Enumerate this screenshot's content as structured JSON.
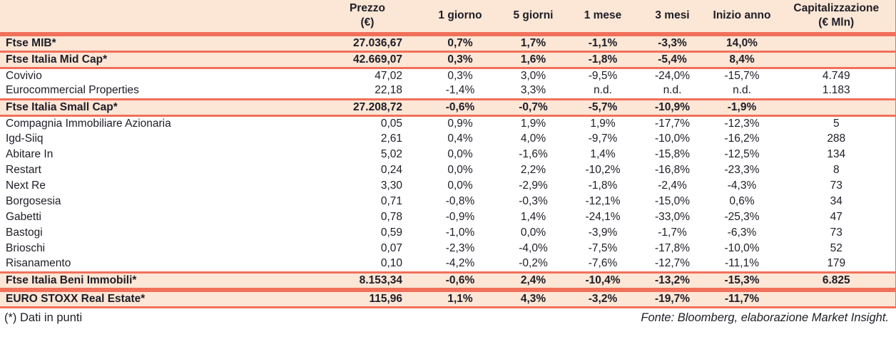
{
  "colors": {
    "highlight_background": "#fce6d5",
    "rule_coral": "#f1705a",
    "text": "#1d1d27"
  },
  "table": {
    "columns": [
      {
        "key": "name",
        "label": ""
      },
      {
        "key": "prezzo",
        "label": "Prezzo\n(€)"
      },
      {
        "key": "d1",
        "label": "1 giorno"
      },
      {
        "key": "d5",
        "label": "5 giorni"
      },
      {
        "key": "m1",
        "label": "1 mese"
      },
      {
        "key": "m3",
        "label": "3 mesi"
      },
      {
        "key": "ytd",
        "label": "Inizio anno"
      },
      {
        "key": "cap",
        "label": "Capitalizzazione\n(€ Mln)"
      }
    ],
    "rows": [
      {
        "kind": "index",
        "name": "Ftse MIB*",
        "prezzo": "27.036,67",
        "d1": "0,7%",
        "d5": "1,7%",
        "m1": "-1,1%",
        "m3": "-3,3%",
        "ytd": "14,0%",
        "cap": ""
      },
      {
        "kind": "index",
        "name": "Ftse Italia Mid Cap*",
        "prezzo": "42.669,07",
        "d1": "0,3%",
        "d5": "1,6%",
        "m1": "-1,8%",
        "m3": "-5,4%",
        "ytd": "8,4%",
        "cap": ""
      },
      {
        "kind": "stock",
        "name": "Covivio",
        "prezzo": "47,02",
        "d1": "0,3%",
        "d5": "3,0%",
        "m1": "-9,5%",
        "m3": "-24,0%",
        "ytd": "-15,7%",
        "cap": "4.749"
      },
      {
        "kind": "stock",
        "name": "Eurocommercial Properties",
        "prezzo": "22,18",
        "d1": "-1,4%",
        "d5": "3,3%",
        "m1": "n.d.",
        "m3": "n.d.",
        "ytd": "n.d.",
        "cap": "1.183"
      },
      {
        "kind": "index",
        "name": "Ftse Italia Small Cap*",
        "prezzo": "27.208,72",
        "d1": "-0,6%",
        "d5": "-0,7%",
        "m1": "-5,7%",
        "m3": "-10,9%",
        "ytd": "-1,9%",
        "cap": ""
      },
      {
        "kind": "stock",
        "name": "Compagnia Immobiliare Azionaria",
        "prezzo": "0,05",
        "d1": "0,9%",
        "d5": "1,9%",
        "m1": "1,9%",
        "m3": "-17,7%",
        "ytd": "-12,3%",
        "cap": "5"
      },
      {
        "kind": "stock",
        "name": "Igd-Siiq",
        "prezzo": "2,61",
        "d1": "0,4%",
        "d5": "4,0%",
        "m1": "-9,7%",
        "m3": "-10,0%",
        "ytd": "-16,2%",
        "cap": "288"
      },
      {
        "kind": "stock",
        "name": "Abitare In",
        "prezzo": "5,02",
        "d1": "0,0%",
        "d5": "-1,6%",
        "m1": "1,4%",
        "m3": "-15,8%",
        "ytd": "-12,5%",
        "cap": "134"
      },
      {
        "kind": "stock",
        "name": "Restart",
        "prezzo": "0,24",
        "d1": "0,0%",
        "d5": "2,2%",
        "m1": "-10,2%",
        "m3": "-16,8%",
        "ytd": "-23,3%",
        "cap": "8"
      },
      {
        "kind": "stock",
        "name": "Next Re",
        "prezzo": "3,30",
        "d1": "0,0%",
        "d5": "-2,9%",
        "m1": "-1,8%",
        "m3": "-2,4%",
        "ytd": "-4,3%",
        "cap": "73"
      },
      {
        "kind": "stock",
        "name": "Borgosesia",
        "prezzo": "0,71",
        "d1": "-0,8%",
        "d5": "-0,3%",
        "m1": "-12,1%",
        "m3": "-15,0%",
        "ytd": "0,6%",
        "cap": "34"
      },
      {
        "kind": "stock",
        "name": "Gabetti",
        "prezzo": "0,78",
        "d1": "-0,9%",
        "d5": "1,4%",
        "m1": "-24,1%",
        "m3": "-33,0%",
        "ytd": "-25,3%",
        "cap": "47"
      },
      {
        "kind": "stock",
        "name": "Bastogi",
        "prezzo": "0,59",
        "d1": "-1,0%",
        "d5": "0,0%",
        "m1": "-3,9%",
        "m3": "-1,7%",
        "ytd": "-6,3%",
        "cap": "73"
      },
      {
        "kind": "stock",
        "name": "Brioschi",
        "prezzo": "0,07",
        "d1": "-2,3%",
        "d5": "-4,0%",
        "m1": "-7,5%",
        "m3": "-17,8%",
        "ytd": "-10,0%",
        "cap": "52"
      },
      {
        "kind": "stock",
        "name": "Risanamento",
        "prezzo": "0,10",
        "d1": "-4,2%",
        "d5": "-0,2%",
        "m1": "-7,6%",
        "m3": "-12,7%",
        "ytd": "-11,1%",
        "cap": "179"
      },
      {
        "kind": "index",
        "name": "Ftse Italia Beni Immobili*",
        "prezzo": "8.153,34",
        "d1": "-0,6%",
        "d5": "2,4%",
        "m1": "-10,4%",
        "m3": "-13,2%",
        "ytd": "-15,3%",
        "cap": "6.825"
      },
      {
        "kind": "index",
        "separator_before": true,
        "name": "EURO STOXX Real Estate*",
        "prezzo": "115,96",
        "d1": "1,1%",
        "d5": "4,3%",
        "m1": "-3,2%",
        "m3": "-19,7%",
        "ytd": "-11,7%",
        "cap": ""
      }
    ]
  },
  "footer": {
    "note": "(*) Dati in punti",
    "source": "Fonte: Bloomberg, elaborazione Market Insight."
  }
}
